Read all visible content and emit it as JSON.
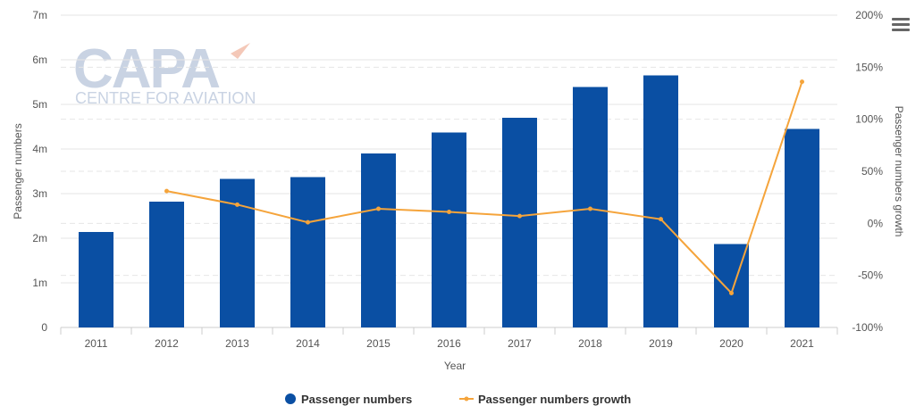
{
  "menu_icon": "hamburger-menu-icon",
  "watermark": {
    "logo": "CAPA",
    "tagline": "CENTRE FOR AVIATION"
  },
  "colors": {
    "bars": "#0a4fa3",
    "line": "#f5a43b",
    "grid": "#e6e6e6",
    "text": "#555555"
  },
  "chart_data": {
    "type": "bar",
    "categories": [
      "2011",
      "2012",
      "2013",
      "2014",
      "2015",
      "2016",
      "2017",
      "2018",
      "2019",
      "2020",
      "2021"
    ],
    "xlabel": "Year",
    "ylabel": "Passenger numbers",
    "y2label": "Passenger numbers growth",
    "ylim": [
      0,
      7000000
    ],
    "y2lim": [
      -100,
      200
    ],
    "yticks": [
      "0",
      "1m",
      "2m",
      "3m",
      "4m",
      "5m",
      "6m",
      "7m"
    ],
    "y2ticks": [
      "-100%",
      "-50%",
      "0%",
      "50%",
      "100%",
      "150%",
      "200%"
    ],
    "series": [
      {
        "name": "Passenger numbers",
        "type": "bar",
        "axis": "left",
        "values": [
          2140000,
          2820000,
          3330000,
          3370000,
          3900000,
          4370000,
          4700000,
          5390000,
          5650000,
          1870000,
          4450000
        ]
      },
      {
        "name": "Passenger numbers growth",
        "type": "line",
        "axis": "right",
        "values": [
          null,
          31,
          18,
          1,
          14,
          11,
          7,
          14,
          4,
          -67,
          136
        ]
      }
    ],
    "legend_position": "bottom-center",
    "grid": true
  }
}
